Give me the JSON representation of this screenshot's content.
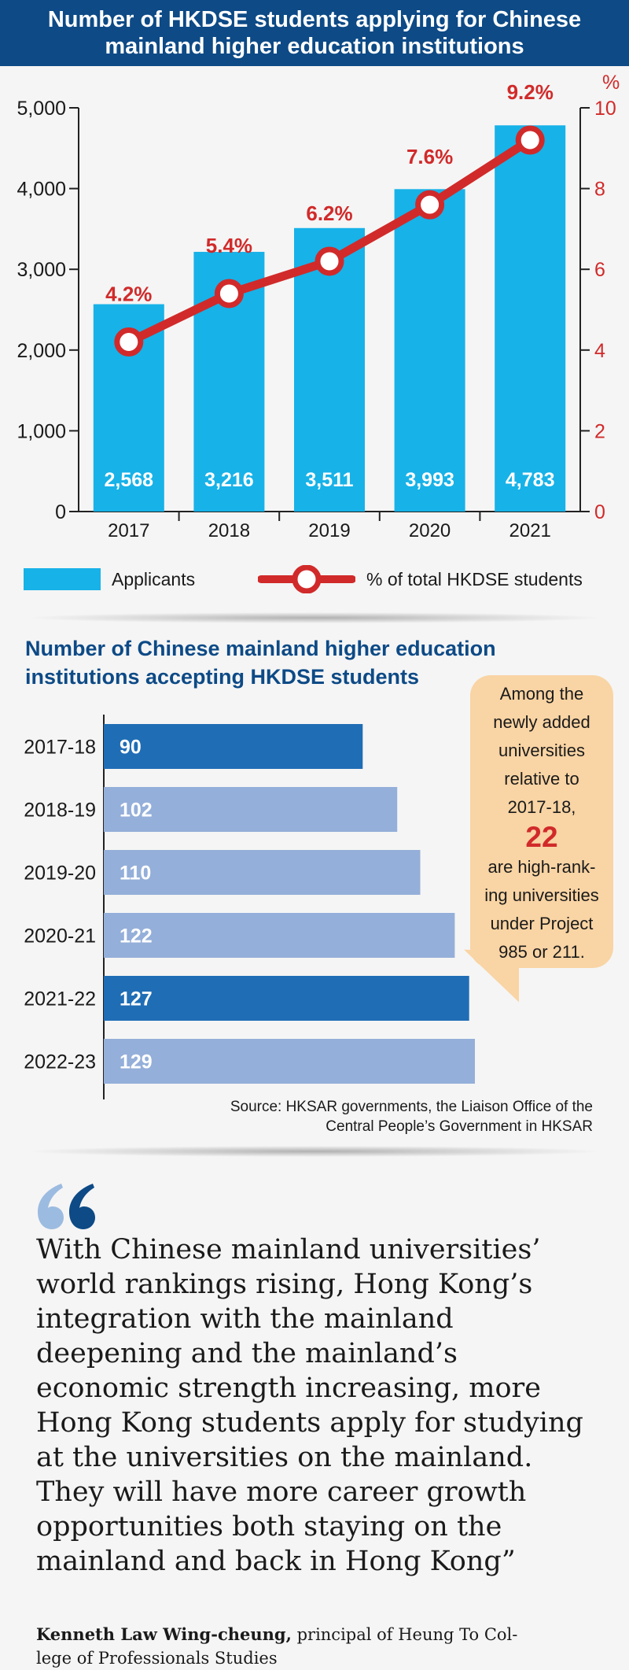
{
  "header": {
    "line1": "Number of HKDSE students applying for Chinese",
    "line2": "mainland higher education institutions"
  },
  "chart_data": [
    {
      "type": "bar",
      "title": "Number of HKDSE students applying for Chinese mainland higher education institutions",
      "categories": [
        "2017",
        "2018",
        "2019",
        "2020",
        "2021"
      ],
      "series": [
        {
          "name": "Applicants",
          "axis": "left",
          "kind": "bar",
          "values": [
            2568,
            3216,
            3511,
            3993,
            4783
          ],
          "labels": [
            "2,568",
            "3,216",
            "3,511",
            "3,993",
            "4,783"
          ],
          "color": "#17b2e8"
        },
        {
          "name": "% of total HKDSE students",
          "axis": "right",
          "kind": "line",
          "values": [
            4.2,
            5.4,
            6.2,
            7.6,
            9.2
          ],
          "labels": [
            "4.2%",
            "5.4%",
            "6.2%",
            "7.6%",
            "9.2%"
          ],
          "color": "#d12a2a"
        }
      ],
      "left_axis": {
        "ylim": [
          0,
          5000
        ],
        "ticks": [
          0,
          1000,
          2000,
          3000,
          4000,
          5000
        ],
        "tick_labels": [
          "0",
          "1,000",
          "2,000",
          "3,000",
          "4,000",
          "5,000"
        ]
      },
      "right_axis": {
        "unit": "%",
        "ylim": [
          0,
          10
        ],
        "ticks": [
          0,
          2,
          4,
          6,
          8,
          10
        ],
        "tick_labels": [
          "0",
          "2",
          "4",
          "6",
          "8",
          "10"
        ]
      },
      "legend": "bottom"
    },
    {
      "type": "bar",
      "orientation": "horizontal",
      "title": "Number of Chinese mainland higher education institutions accepting HKDSE students",
      "categories": [
        "2017-18",
        "2018-19",
        "2019-20",
        "2020-21",
        "2021-22",
        "2022-23"
      ],
      "values": [
        90,
        102,
        110,
        122,
        127,
        129
      ],
      "highlight": [
        true,
        false,
        false,
        false,
        true,
        false
      ],
      "xlim": [
        0,
        129
      ],
      "colors": {
        "highlight": "#1f6db5",
        "normal": "#94afd9"
      }
    }
  ],
  "legend": {
    "bar_label": "Applicants",
    "line_label": "% of total HKDSE students"
  },
  "section2": {
    "title_line1": "Number of Chinese mainland higher education",
    "title_line2": "institutions accepting HKDSE students"
  },
  "bubble": {
    "lines_top": [
      "Among the",
      "newly added",
      "universities",
      "relative to",
      "2017-18,"
    ],
    "big_number": "22",
    "lines_bottom": [
      "are high-rank-",
      "ing universities",
      "under Project",
      "985 or 211."
    ]
  },
  "source": {
    "line1": "Source: HKSAR governments, the Liaison Office of the",
    "line2": "Central People’s Government in HKSAR"
  },
  "quote": {
    "lines": [
      "With Chinese mainland universities’",
      "world rankings rising, Hong Kong’s",
      "integration with the mainland",
      "deepening and the mainland’s",
      "economic strength increasing, more",
      "Hong Kong students apply for studying",
      "at the universities on the mainland.",
      "They will have more career growth",
      "opportunities both staying on the",
      "mainland and back in Hong Kong”"
    ],
    "author": "Kenneth Law Wing-cheung,",
    "role_part1": " principal of Heung To Col-",
    "role_part2": "lege of Professionals Studies"
  },
  "colors": {
    "navy": "#0d4a86",
    "bar_blue": "#17b2e8",
    "red": "#d12a2a",
    "dark_blue": "#1f6db5",
    "light_blue": "#94afd9",
    "bubble": "#f9d4a4"
  }
}
